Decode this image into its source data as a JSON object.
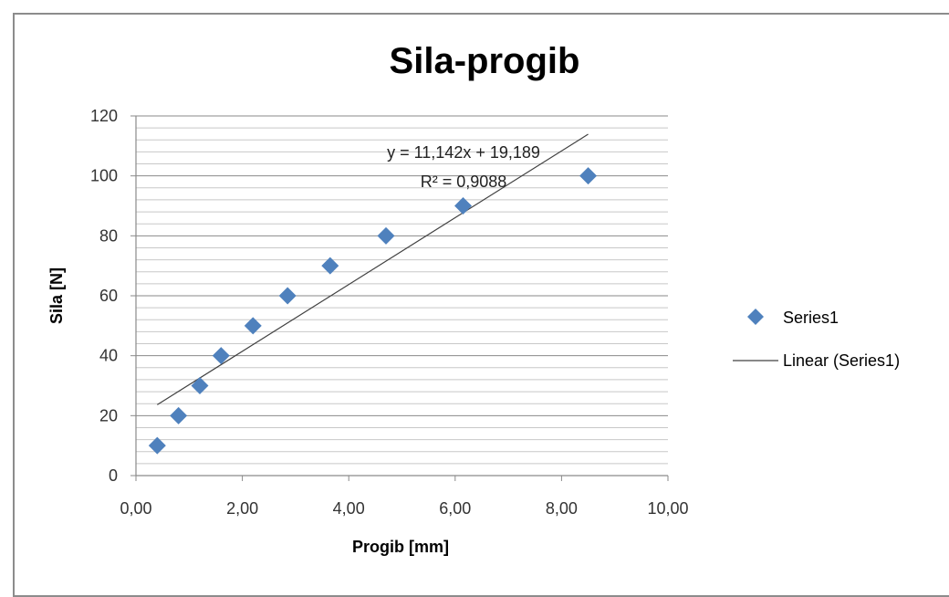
{
  "chart_data": {
    "type": "scatter",
    "title": "Sila-progib",
    "xlabel": "Progib [mm]",
    "ylabel": "Sila [N]",
    "xlim": [
      0,
      10
    ],
    "ylim": [
      0,
      120
    ],
    "x_tick_labels": [
      "0,00",
      "2,00",
      "4,00",
      "6,00",
      "8,00",
      "10,00"
    ],
    "y_tick_labels": [
      "0",
      "20",
      "40",
      "60",
      "80",
      "100",
      "120"
    ],
    "x_ticks": [
      0,
      2,
      4,
      6,
      8,
      10
    ],
    "y_ticks": [
      0,
      20,
      40,
      60,
      80,
      100,
      120
    ],
    "grid": true,
    "legend_position": "right",
    "series": [
      {
        "name": "Series1",
        "marker": "diamond",
        "color": "#4f81bd",
        "points": [
          {
            "x": 0.4,
            "y": 10
          },
          {
            "x": 0.8,
            "y": 20
          },
          {
            "x": 1.2,
            "y": 30
          },
          {
            "x": 1.6,
            "y": 40
          },
          {
            "x": 2.2,
            "y": 50
          },
          {
            "x": 2.85,
            "y": 60
          },
          {
            "x": 3.65,
            "y": 70
          },
          {
            "x": 4.7,
            "y": 80
          },
          {
            "x": 6.15,
            "y": 90
          },
          {
            "x": 8.5,
            "y": 100
          }
        ]
      }
    ],
    "trendline": {
      "name": "Linear (Series1)",
      "type": "linear",
      "slope": 11.142,
      "intercept": 19.189,
      "x_range": [
        0.4,
        8.5
      ],
      "color": "#404040",
      "equation_label": "y = 11,142x + 19,189",
      "r2_label": "R² = 0,9088"
    }
  }
}
